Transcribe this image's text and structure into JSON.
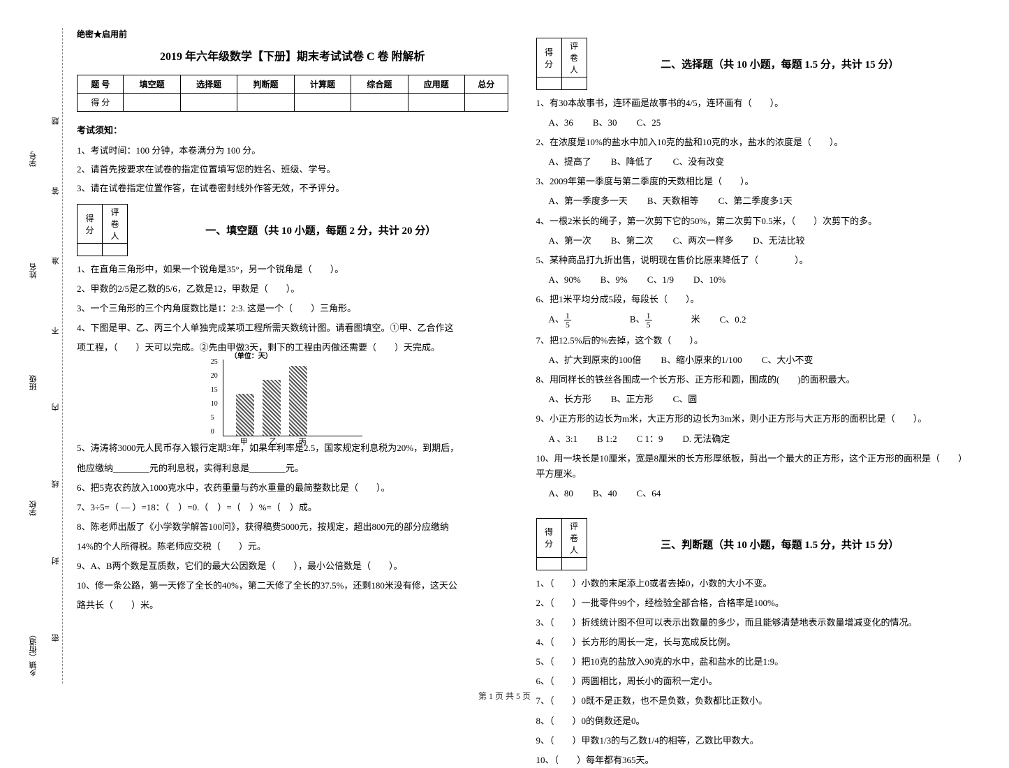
{
  "binding": {
    "labels": [
      "乡镇（街道）",
      "学校",
      "班级",
      "姓名",
      "学号"
    ],
    "dashed_words": [
      "密",
      "封",
      "线",
      "内",
      "不",
      "准",
      "答",
      "题"
    ]
  },
  "secret": "绝密★启用前",
  "title": "2019 年六年级数学【下册】期末考试试卷 C 卷  附解析",
  "score_table": {
    "header": [
      "题 号",
      "填空题",
      "选择题",
      "判断题",
      "计算题",
      "综合题",
      "应用题",
      "总分"
    ],
    "row_label": "得 分"
  },
  "notice": {
    "head": "考试须知：",
    "items": [
      "1、考试时间：100 分钟，本卷满分为 100 分。",
      "2、请首先按要求在试卷的指定位置填写您的姓名、班级、学号。",
      "3、请在试卷指定位置作答，在试卷密封线外作答无效，不予评分。"
    ]
  },
  "sec_labels": {
    "score": "得分",
    "marker": "评卷人"
  },
  "sections": {
    "fill": {
      "title": "一、填空题（共 10 小题，每题 2 分，共计 20 分）",
      "q1": "1、在直角三角形中，如果一个锐角是35°，另一个锐角是（　　）。",
      "q2": "2、甲数的2/5是乙数的5/6，乙数是12，甲数是（　　）。",
      "q3": "3、一个三角形的三个内角度数比是1：2:3. 这是一个（　　）三角形。",
      "q4a": "4、下图是甲、乙、丙三个人单独完成某项工程所需天数统计图。请看图填空。①甲、乙合作这",
      "q4b": "项工程，（　　）天可以完成。②先由甲做3天，剩下的工程由丙做还需要（　　）天完成。",
      "q5a": "5、涛涛将3000元人民币存入银行定期3年，如果年利率是2.5，国家规定利息税为20%，到期后，",
      "q5b": "他应缴纳________元的利息税，实得利息是________元。",
      "q6": "6、把5克农药放入1000克水中，农药重量与药水重量的最简整数比是（　　）。",
      "q7": "7、3÷5=（ — ）=18：（　）=0.（　）=（　）%=（　）成。",
      "q8a": "8、陈老师出版了《小学数学解答100问》，获得稿费5000元，按规定，超出800元的部分应缴纳",
      "q8b": "14%的个人所得税。陈老师应交税（　　）元。",
      "q9": "9、A、B两个数是互质数，它们的最大公因数是（　　），最小公倍数是（　　）。",
      "q10a": "10、修一条公路，第一天修了全长的40%，第二天修了全长的37.5%，还剩180米没有修，这天公",
      "q10b": "路共长（　　）米。"
    },
    "choice": {
      "title": "二、选择题（共 10 小题，每题 1.5 分，共计 15 分）",
      "items": [
        {
          "q": "1、有30本故事书，连环画是故事书的4/5，连环画有（　　）。",
          "opts": [
            "A、36",
            "B、30",
            "C、25"
          ]
        },
        {
          "q": "2、在浓度是10%的盐水中加入10克的盐和10克的水，盐水的浓度是（　　）。",
          "opts": [
            "A、提高了",
            "B、降低了",
            "C、没有改变"
          ]
        },
        {
          "q": "3、2009年第一季度与第二季度的天数相比是（　　）。",
          "opts": [
            "A、第一季度多一天",
            "B、天数相等",
            "C、第二季度多1天"
          ]
        },
        {
          "q": "4、一根2米长的绳子，第一次剪下它的50%，第二次剪下0.5米，（　　）次剪下的多。",
          "opts": [
            "A、第一次",
            "B、第二次",
            "C、两次一样多",
            "D、无法比较"
          ]
        },
        {
          "q": "5、某种商品打九折出售，说明现在售价比原来降低了（　　　　）。",
          "opts": [
            "A、90%",
            "B、9%",
            "C、1/9",
            "D、10%"
          ]
        },
        {
          "q": "6、把1米平均分成5段，每段长（　　）。",
          "opts": []
        },
        {
          "q": "7、把12.5%后的%去掉，这个数（　　）。",
          "opts": [
            "A、扩大到原来的100倍",
            "B、缩小原来的1/100",
            "C、大小不变"
          ]
        },
        {
          "q": "8、用同样长的铁丝各围成一个长方形、正方形和圆，围成的(　　)的面积最大。",
          "opts": [
            "A、长方形",
            "B、正方形",
            "C、圆"
          ]
        },
        {
          "q": "9、小正方形的边长为m米，大正方形的边长为3m米，则小正方形与大正方形的面积比是（　　）。",
          "opts": [
            "A 、3:1",
            "B 1:2",
            "C 1：9",
            "D. 无法确定"
          ]
        },
        {
          "q": "10、用一块长是10厘米，宽是8厘米的长方形厚纸板，剪出一个最大的正方形，这个正方形的面积是（　　）平方厘米。",
          "opts": [
            "A、80",
            "B、40",
            "C、64"
          ]
        }
      ],
      "q6_opts_label": {
        "A": "A、",
        "B": "B、",
        "Bsuffix": "米",
        "C": "C、0.2"
      }
    },
    "judge": {
      "title": "三、判断题（共 10 小题，每题 1.5 分，共计 15 分）",
      "items": [
        "1、（　　）小数的末尾添上0或者去掉0，小数的大小不变。",
        "2、（　　）一批零件99个，经检验全部合格，合格率是100%。",
        "3、（　　）折线统计图不但可以表示出数量的多少，而且能够清楚地表示数量增减变化的情况。",
        "4、（　　）长方形的周长一定，长与宽成反比例。",
        "5、（　　）把10克的盐放入90克的水中，盐和盐水的比是1:9。",
        "6、（　　）两圆相比，周长小的面积一定小。",
        "7、（　　）0既不是正数，也不是负数，负数都比正数小。",
        "8、（　　）0的倒数还是0。",
        "9、（　　）甲数1/3的与乙数1/4的相等，乙数比甲数大。",
        "10、（　　）每年都有365天。"
      ]
    }
  },
  "chart": {
    "unit": "（单位：天）",
    "y_ticks": [
      0,
      5,
      10,
      15,
      20,
      25
    ],
    "bars": [
      {
        "label": "甲",
        "value": 15,
        "x": 24
      },
      {
        "label": "乙",
        "value": 20,
        "x": 66
      },
      {
        "label": "丙",
        "value": 25,
        "x": 108
      }
    ],
    "max": 25,
    "bar_color": "#555555",
    "border_color": "#000000"
  },
  "footer": "第 1 页 共 5 页"
}
